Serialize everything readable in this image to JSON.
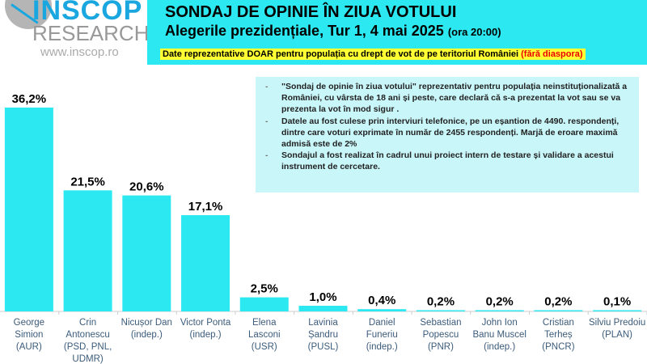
{
  "logo": {
    "name": "INSCOP",
    "sub": "RESEARCH",
    "url": "www.inscop.ro"
  },
  "header": {
    "title": "SONDAJ DE OPINIE ÎN ZIUA VOTULUI",
    "subtitle": "Alegerile prezidențiale, Tur 1, 4 mai 2025",
    "time": "(ora 20:00)",
    "notice": "Date reprezentative DOAR pentru populația cu drept de vot de pe teritoriul României",
    "notice_red": "(fără diaspora)"
  },
  "info": [
    "\"Sondaj de opinie în ziua votului\" reprezentativ pentru populația neinstituționalizată a României, cu vârsta de 18 ani și peste, care declară că s-a prezentat la vot sau se va prezenta la vot în mod sigur .",
    "Datele au fost culese prin interviuri telefonice, pe un eșantion de 4490. respondenți, dintre care voturi exprimate în număr de 2455 respondenți. Marjă de eroare maximă admisă este de 2%",
    "Sondajul a fost realizat în cadrul unui proiect intern de testare și validare a acestui instrument de cercetare."
  ],
  "chart_data": {
    "type": "bar",
    "categories": [
      [
        "George",
        "Simion",
        "(AUR)"
      ],
      [
        "Crin",
        "Antonescu",
        "(PSD, PNL,",
        "UDMR)"
      ],
      [
        "Nicușor Dan",
        "(indep.)"
      ],
      [
        "Victor Ponta",
        "(indep.)"
      ],
      [
        "Elena",
        "Lasconi",
        "(USR)"
      ],
      [
        "Lavinia",
        "Șandru",
        "(PUSL)"
      ],
      [
        "Daniel",
        "Funeriu",
        "(indep.)"
      ],
      [
        "Sebastian",
        "Popescu",
        "(PNR)"
      ],
      [
        "John Ion",
        "Banu Muscel",
        "(indep.)"
      ],
      [
        "Cristian",
        "Terheș",
        "(PNCR)"
      ],
      [
        "Silviu Predoiu",
        "(PLAN)"
      ]
    ],
    "values": [
      36.2,
      21.5,
      20.6,
      17.1,
      2.5,
      1.0,
      0.4,
      0.2,
      0.2,
      0.2,
      0.1
    ],
    "labels": [
      "36,2%",
      "21,5%",
      "20,6%",
      "17,1%",
      "2,5%",
      "1,0%",
      "0,4%",
      "0,2%",
      "0,2%",
      "0,2%",
      "0,1%"
    ],
    "ylim": [
      0,
      40
    ],
    "bar_color": "#2ce8f0"
  }
}
